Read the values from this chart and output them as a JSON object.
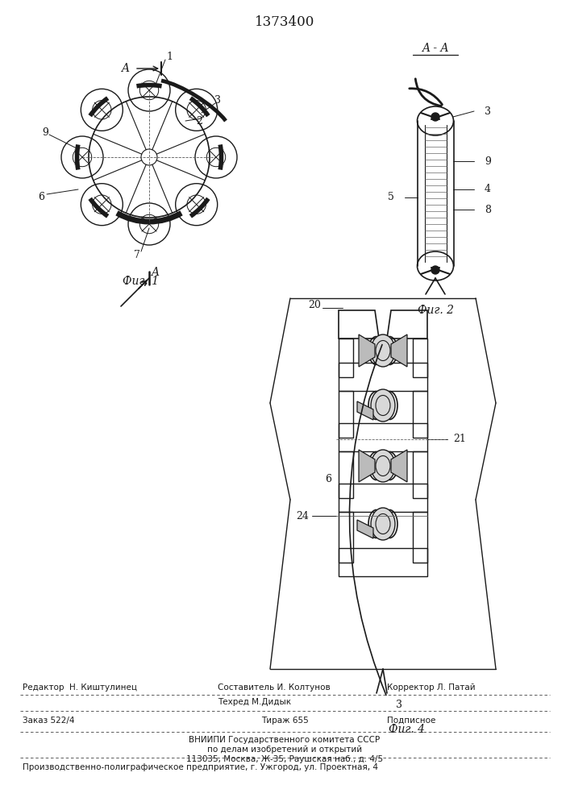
{
  "patent_number": "1373400",
  "background_color": "#ffffff",
  "line_color": "#1a1a1a",
  "fig_width": 7.07,
  "fig_height": 10.0,
  "footer": {
    "line1_left": "Редактор  Н. Киштулинец",
    "line1_center": "Составитель И. Колтунов",
    "line1_right": "Корректор Л. Патай",
    "line2_center": "Техред М.Дидык",
    "line3_left": "Заказ 522/4",
    "line3_center": "Тираж 655",
    "line3_right": "Подписное",
    "line4": "ВНИИПИ Государственного комитета СССР",
    "line5": "по делам изобретений и открытий",
    "line6": "113035, Москва, Ж-35, Раушская наб., д. 4/5",
    "line7": "Производственно-полиграфическое предприятие, г. Ужгород, ул. Проектная, 4"
  }
}
